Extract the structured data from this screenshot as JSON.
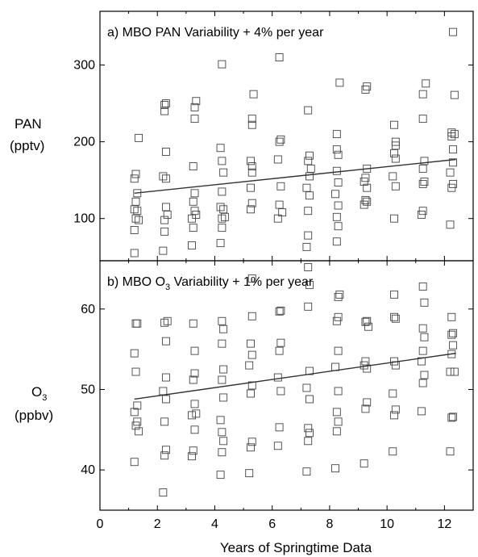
{
  "chart_data": [
    {
      "type": "scatter",
      "title": "a) MBO PAN Variability + 4% per year",
      "ylabel": "PAN",
      "yunit": "(pptv)",
      "xlim": [
        0,
        13
      ],
      "ylim": [
        45,
        370
      ],
      "yticks": [
        100,
        200,
        300
      ],
      "trend": {
        "x": [
          1.2,
          12.4
        ],
        "y": [
          133,
          177
        ]
      },
      "points": [
        [
          1.2,
          55
        ],
        [
          1.2,
          85
        ],
        [
          1.25,
          100
        ],
        [
          1.2,
          112
        ],
        [
          1.25,
          122
        ],
        [
          1.3,
          133
        ],
        [
          1.2,
          152
        ],
        [
          1.25,
          158
        ],
        [
          1.35,
          205
        ],
        [
          1.3,
          110
        ],
        [
          1.35,
          98
        ],
        [
          2.2,
          58
        ],
        [
          2.25,
          83
        ],
        [
          2.25,
          98
        ],
        [
          2.3,
          115
        ],
        [
          2.2,
          155
        ],
        [
          2.3,
          152
        ],
        [
          2.3,
          187
        ],
        [
          2.25,
          240
        ],
        [
          2.25,
          248
        ],
        [
          2.3,
          250
        ],
        [
          2.35,
          105
        ],
        [
          3.2,
          65
        ],
        [
          3.25,
          88
        ],
        [
          3.2,
          100
        ],
        [
          3.3,
          110
        ],
        [
          3.25,
          122
        ],
        [
          3.3,
          133
        ],
        [
          3.25,
          168
        ],
        [
          3.3,
          230
        ],
        [
          3.3,
          245
        ],
        [
          3.35,
          253
        ],
        [
          3.35,
          105
        ],
        [
          4.2,
          68
        ],
        [
          4.25,
          88
        ],
        [
          4.25,
          100
        ],
        [
          4.2,
          115
        ],
        [
          4.3,
          112
        ],
        [
          4.25,
          135
        ],
        [
          4.3,
          160
        ],
        [
          4.25,
          175
        ],
        [
          4.2,
          192
        ],
        [
          4.25,
          301
        ],
        [
          4.35,
          102
        ],
        [
          5.25,
          112
        ],
        [
          5.3,
          120
        ],
        [
          5.25,
          140
        ],
        [
          5.3,
          160
        ],
        [
          5.25,
          175
        ],
        [
          5.3,
          168
        ],
        [
          5.3,
          230
        ],
        [
          5.3,
          222
        ],
        [
          5.35,
          262
        ],
        [
          6.2,
          100
        ],
        [
          6.25,
          118
        ],
        [
          6.3,
          142
        ],
        [
          6.2,
          177
        ],
        [
          6.25,
          200
        ],
        [
          6.3,
          203
        ],
        [
          6.25,
          310
        ],
        [
          6.35,
          108
        ],
        [
          7.2,
          63
        ],
        [
          7.25,
          78
        ],
        [
          7.25,
          110
        ],
        [
          7.3,
          130
        ],
        [
          7.2,
          140
        ],
        [
          7.3,
          155
        ],
        [
          7.25,
          175
        ],
        [
          7.3,
          182
        ],
        [
          7.25,
          241
        ],
        [
          7.35,
          165
        ],
        [
          8.25,
          70
        ],
        [
          8.3,
          90
        ],
        [
          8.25,
          102
        ],
        [
          8.3,
          117
        ],
        [
          8.2,
          132
        ],
        [
          8.3,
          147
        ],
        [
          8.25,
          162
        ],
        [
          8.3,
          183
        ],
        [
          8.25,
          190
        ],
        [
          8.25,
          210
        ],
        [
          8.35,
          277
        ],
        [
          9.2,
          118
        ],
        [
          9.25,
          124
        ],
        [
          9.3,
          140
        ],
        [
          9.2,
          148
        ],
        [
          9.25,
          153
        ],
        [
          9.3,
          165
        ],
        [
          9.25,
          268
        ],
        [
          9.3,
          272
        ],
        [
          9.3,
          122
        ],
        [
          10.25,
          100
        ],
        [
          10.3,
          142
        ],
        [
          10.2,
          155
        ],
        [
          10.3,
          178
        ],
        [
          10.25,
          185
        ],
        [
          10.3,
          195
        ],
        [
          10.3,
          200
        ],
        [
          10.25,
          222
        ],
        [
          11.2,
          105
        ],
        [
          11.25,
          110
        ],
        [
          11.25,
          145
        ],
        [
          11.3,
          148
        ],
        [
          11.25,
          165
        ],
        [
          11.3,
          175
        ],
        [
          11.25,
          230
        ],
        [
          11.25,
          262
        ],
        [
          11.35,
          276
        ],
        [
          12.2,
          92
        ],
        [
          12.25,
          140
        ],
        [
          12.3,
          145
        ],
        [
          12.2,
          160
        ],
        [
          12.3,
          173
        ],
        [
          12.3,
          190
        ],
        [
          12.25,
          207
        ],
        [
          12.25,
          212
        ],
        [
          12.35,
          210
        ],
        [
          12.35,
          261
        ],
        [
          12.3,
          343
        ]
      ]
    },
    {
      "type": "scatter",
      "title": "b) MBO O",
      "title_sub": "3",
      "title_rest": " Variability + 1% per year",
      "ylabel": "O",
      "ylabel_sub": "3",
      "yunit": "(ppbv)",
      "xlim": [
        0,
        13
      ],
      "ylim": [
        35,
        66
      ],
      "yticks": [
        40,
        50,
        60
      ],
      "xticks": [
        0,
        2,
        4,
        6,
        8,
        10,
        12
      ],
      "xlabel": "Years of Springtime Data",
      "trend": {
        "x": [
          1.2,
          12.4
        ],
        "y": [
          48.8,
          54.5
        ]
      },
      "points": [
        [
          1.2,
          41
        ],
        [
          1.25,
          45.5
        ],
        [
          1.3,
          46
        ],
        [
          1.2,
          47.2
        ],
        [
          1.3,
          48
        ],
        [
          1.25,
          52.2
        ],
        [
          1.2,
          54.5
        ],
        [
          1.25,
          58.2
        ],
        [
          1.3,
          58.2
        ],
        [
          1.35,
          44.8
        ],
        [
          2.2,
          37.2
        ],
        [
          2.25,
          41.8
        ],
        [
          2.3,
          42.5
        ],
        [
          2.25,
          46
        ],
        [
          2.3,
          48.8
        ],
        [
          2.2,
          49.8
        ],
        [
          2.3,
          51.5
        ],
        [
          2.3,
          56
        ],
        [
          2.25,
          58.3
        ],
        [
          2.35,
          58.5
        ],
        [
          3.2,
          41.7
        ],
        [
          3.25,
          42.4
        ],
        [
          3.3,
          45
        ],
        [
          3.2,
          46.8
        ],
        [
          3.3,
          48.2
        ],
        [
          3.25,
          51.2
        ],
        [
          3.3,
          52
        ],
        [
          3.3,
          54.8
        ],
        [
          3.25,
          58.2
        ],
        [
          3.35,
          47
        ],
        [
          4.2,
          39.4
        ],
        [
          4.25,
          42.2
        ],
        [
          4.3,
          43.6
        ],
        [
          4.25,
          44.7
        ],
        [
          4.2,
          46.2
        ],
        [
          4.3,
          49
        ],
        [
          4.25,
          51.2
        ],
        [
          4.3,
          52.5
        ],
        [
          4.25,
          55.7
        ],
        [
          4.3,
          57.5
        ],
        [
          4.25,
          58.5
        ],
        [
          5.2,
          39.6
        ],
        [
          5.25,
          42.8
        ],
        [
          5.3,
          43.5
        ],
        [
          5.25,
          49.5
        ],
        [
          5.3,
          50.5
        ],
        [
          5.2,
          53
        ],
        [
          5.3,
          54.3
        ],
        [
          5.25,
          55.7
        ],
        [
          5.3,
          59.1
        ],
        [
          5.3,
          63.8
        ],
        [
          6.2,
          43
        ],
        [
          6.25,
          45.3
        ],
        [
          6.3,
          49.8
        ],
        [
          6.2,
          51.5
        ],
        [
          6.25,
          54.8
        ],
        [
          6.3,
          55.8
        ],
        [
          6.25,
          59.7
        ],
        [
          6.3,
          59.8
        ],
        [
          7.2,
          39.8
        ],
        [
          7.25,
          43.6
        ],
        [
          7.3,
          44.6
        ],
        [
          7.25,
          45.2
        ],
        [
          7.3,
          48.8
        ],
        [
          7.2,
          50.2
        ],
        [
          7.3,
          52.3
        ],
        [
          7.25,
          60.3
        ],
        [
          7.3,
          63
        ],
        [
          7.25,
          65.2
        ],
        [
          8.2,
          40.2
        ],
        [
          8.25,
          44.8
        ],
        [
          8.3,
          46
        ],
        [
          8.25,
          47.2
        ],
        [
          8.3,
          49.8
        ],
        [
          8.2,
          52.8
        ],
        [
          8.3,
          54.8
        ],
        [
          8.25,
          58.5
        ],
        [
          8.3,
          59
        ],
        [
          8.3,
          61.5
        ],
        [
          8.35,
          61.8
        ],
        [
          9.2,
          40.8
        ],
        [
          9.25,
          47.6
        ],
        [
          9.3,
          48.4
        ],
        [
          9.2,
          53
        ],
        [
          9.25,
          53.5
        ],
        [
          9.3,
          52.6
        ],
        [
          9.25,
          58.4
        ],
        [
          9.3,
          58.5
        ],
        [
          9.35,
          57.8
        ],
        [
          10.2,
          42.3
        ],
        [
          10.25,
          46.8
        ],
        [
          10.3,
          47.5
        ],
        [
          10.2,
          49.5
        ],
        [
          10.3,
          53
        ],
        [
          10.25,
          53.5
        ],
        [
          10.3,
          58.8
        ],
        [
          10.25,
          59
        ],
        [
          10.25,
          61.8
        ],
        [
          11.2,
          47.3
        ],
        [
          11.25,
          50.8
        ],
        [
          11.3,
          51.8
        ],
        [
          11.2,
          53.5
        ],
        [
          11.25,
          54.8
        ],
        [
          11.3,
          56.5
        ],
        [
          11.25,
          57.6
        ],
        [
          11.3,
          60.8
        ],
        [
          11.25,
          62.8
        ],
        [
          12.2,
          42.3
        ],
        [
          12.25,
          46.5
        ],
        [
          12.3,
          46.6
        ],
        [
          12.2,
          52.2
        ],
        [
          12.25,
          54.4
        ],
        [
          12.3,
          55.5
        ],
        [
          12.3,
          57
        ],
        [
          12.25,
          56.8
        ],
        [
          12.25,
          59
        ],
        [
          12.35,
          52.2
        ]
      ]
    }
  ]
}
